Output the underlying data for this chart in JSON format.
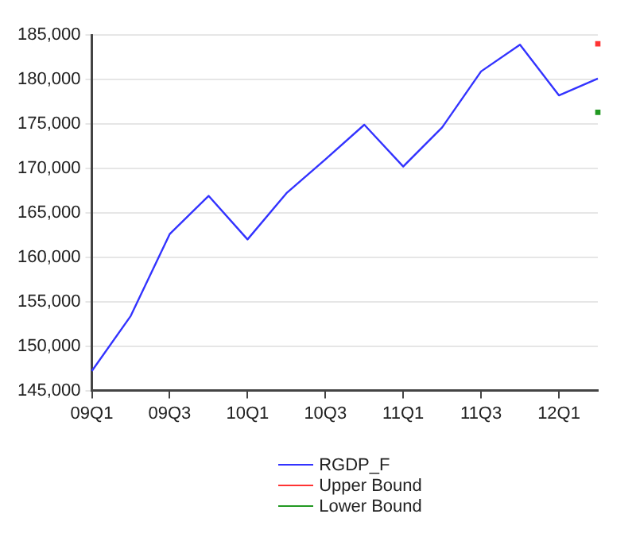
{
  "chart_data": {
    "type": "line",
    "categories": [
      "09Q1",
      null,
      "09Q3",
      null,
      "10Q1",
      null,
      "10Q3",
      null,
      "11Q1",
      null,
      "11Q3",
      null,
      "12Q1",
      null
    ],
    "series": [
      {
        "name": "RGDP_F",
        "color": "#3333ff",
        "values": [
          147200,
          153400,
          162600,
          166900,
          162000,
          167200,
          171000,
          174900,
          170200,
          174600,
          180900,
          183900,
          178200,
          180100
        ]
      },
      {
        "name": "Upper Bound",
        "color": "#ff3333",
        "marker": "square",
        "values": [
          null,
          null,
          null,
          null,
          null,
          null,
          null,
          null,
          null,
          null,
          null,
          null,
          null,
          184000
        ]
      },
      {
        "name": "Lower Bound",
        "color": "#229922",
        "marker": "square",
        "values": [
          null,
          null,
          null,
          null,
          null,
          null,
          null,
          null,
          null,
          null,
          null,
          null,
          null,
          176300
        ]
      }
    ],
    "ylim": [
      145000,
      185000
    ],
    "yticks": [
      {
        "value": 145000,
        "label": "145,000"
      },
      {
        "value": 150000,
        "label": "150,000"
      },
      {
        "value": 155000,
        "label": "155,000"
      },
      {
        "value": 160000,
        "label": "160,000"
      },
      {
        "value": 165000,
        "label": "165,000"
      },
      {
        "value": 170000,
        "label": "170,000"
      },
      {
        "value": 175000,
        "label": "175,000"
      },
      {
        "value": 180000,
        "label": "180,000"
      },
      {
        "value": 185000,
        "label": "185,000"
      }
    ],
    "grid": "y",
    "legend": "bottom",
    "marker": "none"
  }
}
